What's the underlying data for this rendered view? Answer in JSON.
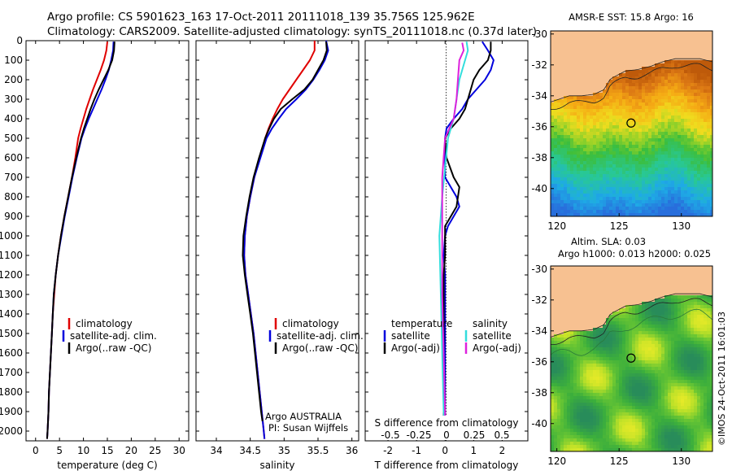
{
  "header": {
    "line1": "Argo profile: CS 5901623_163 17-Oct-2011 20111018_139 35.756S 125.962E",
    "line2": "Climatology: CARS2009. Satellite-adjusted climatology: synTS_20111018.nc (0.37d later)"
  },
  "credit": "©IMOS 24-Oct-2011 16:01:03",
  "colors": {
    "climatology": "#e00000",
    "satellite": "#0000dd",
    "argo": "#000000",
    "salinity_satellite": "#33dddd",
    "salinity_argo": "#dd22dd",
    "land": "#f7c191",
    "marker": "#000000"
  },
  "chart_data": [
    {
      "type": "line",
      "id": "temperature",
      "xlabel": "temperature (deg C)",
      "xlim": [
        -2,
        32
      ],
      "xticks": [
        0,
        5,
        10,
        15,
        20,
        25,
        30
      ],
      "ylim": [
        2050,
        0
      ],
      "yticks": [
        0,
        100,
        200,
        300,
        400,
        500,
        600,
        700,
        800,
        900,
        1000,
        1100,
        1200,
        1300,
        1400,
        1500,
        1600,
        1700,
        1800,
        1900,
        2000
      ],
      "legend": [
        "climatology",
        "satellite-adj. clim.",
        "Argo(..raw -QC)"
      ],
      "series": [
        {
          "name": "climatology",
          "color": "climatology",
          "points": [
            [
              15.0,
              5
            ],
            [
              14.8,
              50
            ],
            [
              14.3,
              100
            ],
            [
              13.6,
              150
            ],
            [
              12.8,
              200
            ],
            [
              12.0,
              250
            ],
            [
              11.3,
              300
            ],
            [
              10.6,
              350
            ],
            [
              10.0,
              400
            ],
            [
              9.4,
              450
            ],
            [
              8.9,
              500
            ],
            [
              8.3,
              600
            ],
            [
              7.6,
              700
            ],
            [
              6.8,
              800
            ],
            [
              6.0,
              900
            ],
            [
              5.3,
              1000
            ],
            [
              4.7,
              1100
            ],
            [
              4.2,
              1200
            ],
            [
              3.9,
              1300
            ],
            [
              3.6,
              1400
            ],
            [
              3.4,
              1500
            ],
            [
              3.2,
              1600
            ],
            [
              3.0,
              1700
            ],
            [
              2.8,
              1800
            ],
            [
              2.7,
              1900
            ],
            [
              2.5,
              2000
            ],
            [
              2.4,
              2040
            ]
          ]
        },
        {
          "name": "satellite-adj. clim.",
          "color": "satellite",
          "points": [
            [
              16.3,
              5
            ],
            [
              16.2,
              50
            ],
            [
              15.8,
              100
            ],
            [
              15.3,
              150
            ],
            [
              14.6,
              200
            ],
            [
              13.8,
              250
            ],
            [
              12.9,
              300
            ],
            [
              12.0,
              350
            ],
            [
              11.1,
              400
            ],
            [
              10.3,
              450
            ],
            [
              9.6,
              500
            ],
            [
              8.6,
              600
            ],
            [
              7.7,
              700
            ],
            [
              6.9,
              800
            ],
            [
              6.1,
              900
            ],
            [
              5.4,
              1000
            ],
            [
              4.7,
              1100
            ],
            [
              4.2,
              1200
            ],
            [
              3.8,
              1300
            ],
            [
              3.6,
              1400
            ],
            [
              3.4,
              1500
            ],
            [
              3.2,
              1600
            ],
            [
              3.0,
              1700
            ],
            [
              2.8,
              1800
            ],
            [
              2.7,
              1900
            ],
            [
              2.5,
              2000
            ],
            [
              2.4,
              2040
            ]
          ]
        },
        {
          "name": "Argo(..raw -QC)",
          "color": "argo",
          "points": [
            [
              16.5,
              5
            ],
            [
              16.4,
              50
            ],
            [
              16.0,
              100
            ],
            [
              15.2,
              150
            ],
            [
              14.2,
              200
            ],
            [
              13.2,
              250
            ],
            [
              12.3,
              300
            ],
            [
              11.5,
              350
            ],
            [
              10.8,
              400
            ],
            [
              10.1,
              450
            ],
            [
              9.5,
              500
            ],
            [
              8.5,
              600
            ],
            [
              7.6,
              700
            ],
            [
              6.8,
              800
            ],
            [
              6.0,
              900
            ],
            [
              5.3,
              1000
            ],
            [
              4.7,
              1100
            ],
            [
              4.2,
              1200
            ],
            [
              3.8,
              1300
            ],
            [
              3.6,
              1400
            ],
            [
              3.4,
              1500
            ],
            [
              3.2,
              1600
            ],
            [
              3.0,
              1700
            ],
            [
              2.8,
              1800
            ],
            [
              2.7,
              1900
            ],
            [
              2.5,
              2000
            ],
            [
              2.4,
              2040
            ]
          ]
        }
      ]
    },
    {
      "type": "line",
      "id": "salinity",
      "xlabel": "salinity",
      "xlim": [
        33.7,
        36.1
      ],
      "xticks": [
        34,
        34.5,
        35,
        35.5,
        36
      ],
      "ylim": [
        2050,
        0
      ],
      "legend": [
        "climatology",
        "satellite-adj. clim.",
        "Argo(..raw -QC)"
      ],
      "annotations": [
        "Argo AUSTRALIA",
        "PI: Susan Wijffels"
      ],
      "series": [
        {
          "name": "climatology",
          "color": "climatology",
          "points": [
            [
              35.45,
              0
            ],
            [
              35.45,
              50
            ],
            [
              35.38,
              100
            ],
            [
              35.28,
              150
            ],
            [
              35.18,
              200
            ],
            [
              35.08,
              250
            ],
            [
              34.98,
              300
            ],
            [
              34.9,
              350
            ],
            [
              34.83,
              400
            ],
            [
              34.77,
              450
            ],
            [
              34.72,
              500
            ],
            [
              34.64,
              600
            ],
            [
              34.56,
              700
            ],
            [
              34.5,
              800
            ],
            [
              34.45,
              900
            ],
            [
              34.42,
              1000
            ],
            [
              34.41,
              1100
            ],
            [
              34.43,
              1200
            ],
            [
              34.47,
              1300
            ],
            [
              34.51,
              1400
            ],
            [
              34.55,
              1500
            ],
            [
              34.58,
              1600
            ],
            [
              34.61,
              1700
            ],
            [
              34.64,
              1800
            ],
            [
              34.67,
              1900
            ],
            [
              34.7,
              2000
            ],
            [
              34.71,
              2040
            ]
          ]
        },
        {
          "name": "satellite-adj. clim.",
          "color": "satellite",
          "points": [
            [
              35.62,
              0
            ],
            [
              35.65,
              50
            ],
            [
              35.6,
              100
            ],
            [
              35.52,
              150
            ],
            [
              35.43,
              200
            ],
            [
              35.32,
              250
            ],
            [
              35.18,
              300
            ],
            [
              35.03,
              350
            ],
            [
              34.92,
              400
            ],
            [
              34.82,
              450
            ],
            [
              34.74,
              500
            ],
            [
              34.65,
              600
            ],
            [
              34.56,
              700
            ],
            [
              34.5,
              800
            ],
            [
              34.45,
              900
            ],
            [
              34.42,
              1000
            ],
            [
              34.41,
              1100
            ],
            [
              34.43,
              1200
            ],
            [
              34.47,
              1300
            ],
            [
              34.51,
              1400
            ],
            [
              34.55,
              1500
            ],
            [
              34.58,
              1600
            ],
            [
              34.61,
              1700
            ],
            [
              34.64,
              1800
            ],
            [
              34.67,
              1900
            ],
            [
              34.7,
              2000
            ],
            [
              34.71,
              2040
            ]
          ]
        },
        {
          "name": "Argo(..raw -QC)",
          "color": "argo",
          "points": [
            [
              35.62,
              5
            ],
            [
              35.63,
              50
            ],
            [
              35.58,
              100
            ],
            [
              35.5,
              150
            ],
            [
              35.42,
              200
            ],
            [
              35.3,
              250
            ],
            [
              35.12,
              300
            ],
            [
              34.95,
              350
            ],
            [
              34.85,
              400
            ],
            [
              34.78,
              450
            ],
            [
              34.72,
              500
            ],
            [
              34.63,
              600
            ],
            [
              34.55,
              700
            ],
            [
              34.49,
              800
            ],
            [
              34.44,
              900
            ],
            [
              34.4,
              1000
            ],
            [
              34.39,
              1100
            ],
            [
              34.42,
              1200
            ],
            [
              34.46,
              1300
            ],
            [
              34.5,
              1400
            ],
            [
              34.54,
              1500
            ],
            [
              34.57,
              1600
            ],
            [
              34.6,
              1700
            ],
            [
              34.63,
              1800
            ],
            [
              34.66,
              1900
            ],
            [
              34.68,
              1950
            ]
          ]
        }
      ]
    },
    {
      "type": "line",
      "id": "difference",
      "xlabel": "T difference from climatology",
      "top_xlabel": "S difference from climatology",
      "xlim": [
        -2.8,
        2.9
      ],
      "xticks": [
        -2,
        -1,
        0,
        1,
        2
      ],
      "top_ticks": [
        "-0.5",
        "-0.25",
        "0",
        "0.25",
        "0.5"
      ],
      "ylim": [
        2050,
        0
      ],
      "legend_left": {
        "title": "temperature",
        "items": [
          "satellite",
          "Argo(-adj)"
        ]
      },
      "legend_right": {
        "title": "salinity",
        "items": [
          "satellite",
          "Argo(-adj)"
        ]
      },
      "series": [
        {
          "name": "satellite",
          "color": "satellite",
          "points": [
            [
              1.3,
              5
            ],
            [
              1.5,
              50
            ],
            [
              1.7,
              100
            ],
            [
              1.6,
              150
            ],
            [
              1.4,
              200
            ],
            [
              1.1,
              250
            ],
            [
              0.8,
              300
            ],
            [
              0.6,
              350
            ],
            [
              0.3,
              400
            ],
            [
              0.05,
              450
            ],
            [
              0.0,
              500
            ],
            [
              0.0,
              700
            ],
            [
              0.4,
              800
            ],
            [
              0.5,
              850
            ],
            [
              0.3,
              900
            ],
            [
              0.1,
              950
            ],
            [
              0.0,
              1000
            ],
            [
              -0.05,
              1100
            ],
            [
              0.0,
              1200
            ],
            [
              0.0,
              2040
            ]
          ]
        },
        {
          "name": "Argo(-adj)",
          "color": "argo",
          "points": [
            [
              1.6,
              5
            ],
            [
              1.6,
              50
            ],
            [
              1.5,
              100
            ],
            [
              1.2,
              150
            ],
            [
              1.0,
              200
            ],
            [
              0.9,
              250
            ],
            [
              0.8,
              300
            ],
            [
              0.7,
              350
            ],
            [
              0.5,
              400
            ],
            [
              0.2,
              450
            ],
            [
              0.0,
              500
            ],
            [
              0.05,
              600
            ],
            [
              0.3,
              700
            ],
            [
              0.5,
              750
            ],
            [
              0.4,
              850
            ],
            [
              0.2,
              900
            ],
            [
              0.0,
              950
            ],
            [
              0.0,
              1100
            ],
            [
              -0.05,
              1200
            ],
            [
              -0.05,
              2040
            ]
          ]
        },
        {
          "name": "satellite",
          "color": "salinity_satellite",
          "points": [
            [
              0.75,
              5
            ],
            [
              0.8,
              50
            ],
            [
              0.7,
              100
            ],
            [
              0.5,
              200
            ],
            [
              0.4,
              300
            ],
            [
              0.3,
              400
            ],
            [
              0.1,
              500
            ],
            [
              -0.1,
              800
            ],
            [
              -0.2,
              1000
            ],
            [
              -0.15,
              1300
            ],
            [
              -0.1,
              1600
            ],
            [
              -0.05,
              1900
            ],
            [
              0.0,
              2040
            ]
          ]
        },
        {
          "name": "Argo(-adj)",
          "color": "salinity_argo",
          "points": [
            [
              0.6,
              10
            ],
            [
              0.65,
              50
            ],
            [
              0.5,
              100
            ],
            [
              0.45,
              200
            ],
            [
              0.4,
              300
            ],
            [
              0.3,
              400
            ],
            [
              0.0,
              500
            ],
            [
              -0.1,
              700
            ],
            [
              -0.1,
              1000
            ],
            [
              -0.1,
              1300
            ],
            [
              -0.05,
              1600
            ],
            [
              0.0,
              1900
            ],
            [
              0.0,
              1990
            ]
          ]
        }
      ]
    }
  ],
  "maps": [
    {
      "id": "sst",
      "title": "AMSR-E SST: 15.8 Argo: 16",
      "xticks": [
        120,
        125,
        130
      ],
      "yticks": [
        -30,
        -32,
        -34,
        -36,
        -38,
        -40
      ],
      "xlim": [
        119.5,
        132.5
      ],
      "ylim": [
        -41.8,
        -29.8
      ],
      "marker": [
        125.96,
        -35.76
      ]
    },
    {
      "id": "sla",
      "title": "Altim. SLA: 0.03",
      "subtitle": "Argo h1000: 0.013 h2000: 0.025",
      "xticks": [
        120,
        125,
        130
      ],
      "yticks": [
        -30,
        -32,
        -34,
        -36,
        -38,
        -40
      ],
      "xlim": [
        119.5,
        132.5
      ],
      "ylim": [
        -41.8,
        -29.8
      ],
      "marker": [
        125.96,
        -35.76
      ]
    }
  ]
}
